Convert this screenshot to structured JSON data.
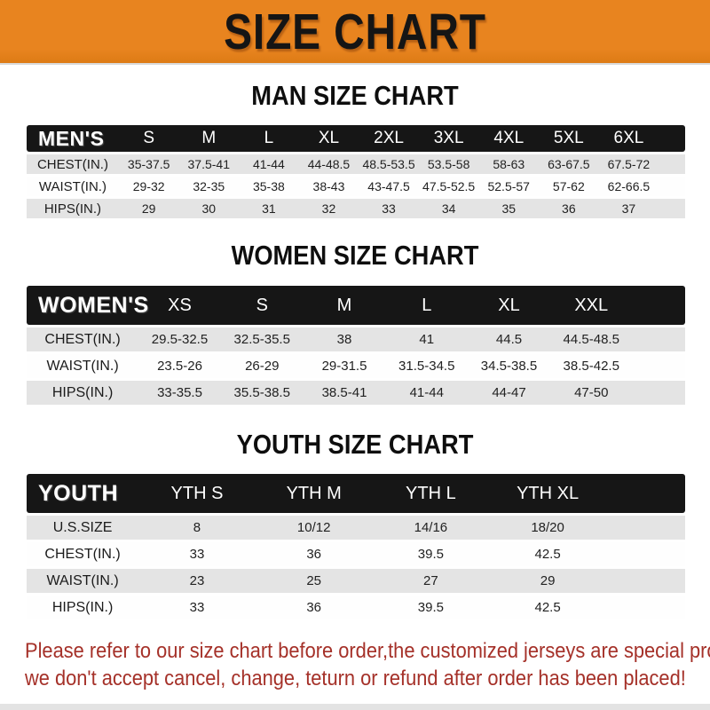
{
  "page": {
    "title": "SIZE CHART",
    "colors": {
      "accent_orange": "#E8841F",
      "header_bar_black": "#161616",
      "row_gray": "#E4E4E4",
      "footer_red": "#A53129"
    },
    "footer": {
      "line1": "Please refer to our size chart before order,the customized jerseys are special products,",
      "line2": "we don't accept cancel, change, teturn or refund after order has been placed!"
    }
  },
  "sections": [
    {
      "heading": "MAN SIZE CHART",
      "table": {
        "label": "MEN'S",
        "columns": [
          "S",
          "M",
          "L",
          "XL",
          "2XL",
          "3XL",
          "4XL",
          "5XL",
          "6XL"
        ],
        "rows": [
          {
            "label": "CHEST(IN.)",
            "values": [
              "35-37.5",
              "37.5-41",
              "41-44",
              "44-48.5",
              "48.5-53.5",
              "53.5-58",
              "58-63",
              "63-67.5",
              "67.5-72"
            ]
          },
          {
            "label": "WAIST(IN.)",
            "values": [
              "29-32",
              "32-35",
              "35-38",
              "38-43",
              "43-47.5",
              "47.5-52.5",
              "52.5-57",
              "57-62",
              "62-66.5"
            ]
          },
          {
            "label": "HIPS(IN.)",
            "values": [
              "29",
              "30",
              "31",
              "32",
              "33",
              "34",
              "35",
              "36",
              "37"
            ]
          }
        ]
      }
    },
    {
      "heading": "WOMEN SIZE CHART",
      "table": {
        "label": "WOMEN'S",
        "columns": [
          "XS",
          "S",
          "M",
          "L",
          "XL",
          "XXL"
        ],
        "rows": [
          {
            "label": "CHEST(IN.)",
            "values": [
              "29.5-32.5",
              "32.5-35.5",
              "38",
              "41",
              "44.5",
              "44.5-48.5"
            ]
          },
          {
            "label": "WAIST(IN.)",
            "values": [
              "23.5-26",
              "26-29",
              "29-31.5",
              "31.5-34.5",
              "34.5-38.5",
              "38.5-42.5"
            ]
          },
          {
            "label": "HIPS(IN.)",
            "values": [
              "33-35.5",
              "35.5-38.5",
              "38.5-41",
              "41-44",
              "44-47",
              "47-50"
            ]
          }
        ]
      }
    },
    {
      "heading": "YOUTH SIZE CHART",
      "table": {
        "label": "YOUTH",
        "columns": [
          "YTH S",
          "YTH M",
          "YTH L",
          "YTH XL"
        ],
        "rows": [
          {
            "label": "U.S.SIZE",
            "values": [
              "8",
              "10/12",
              "14/16",
              "18/20"
            ]
          },
          {
            "label": "CHEST(IN.)",
            "values": [
              "33",
              "36",
              "39.5",
              "42.5"
            ]
          },
          {
            "label": "WAIST(IN.)",
            "values": [
              "23",
              "25",
              "27",
              "29"
            ]
          },
          {
            "label": "HIPS(IN.)",
            "values": [
              "33",
              "36",
              "39.5",
              "42.5"
            ]
          }
        ]
      }
    }
  ]
}
